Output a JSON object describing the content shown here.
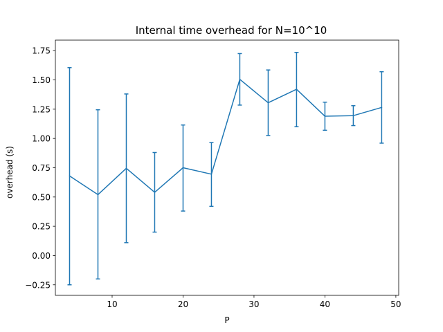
{
  "chart_data": {
    "type": "line",
    "title": "Internal time overhead for N=10^10",
    "xlabel": "P",
    "ylabel": "overhead (s)",
    "xlim": [
      2,
      50.4
    ],
    "ylim": [
      -0.34,
      1.84
    ],
    "xticks": [
      10,
      20,
      30,
      40,
      50
    ],
    "yticks": [
      -0.25,
      0.0,
      0.25,
      0.5,
      0.75,
      1.0,
      1.25,
      1.5,
      1.75
    ],
    "xtick_labels": [
      "10",
      "20",
      "30",
      "40",
      "50"
    ],
    "ytick_labels": [
      "−0.25",
      "0.00",
      "0.25",
      "0.50",
      "0.75",
      "1.00",
      "1.25",
      "1.50",
      "1.75"
    ],
    "grid": false,
    "color": "#1f77b4",
    "series": [
      {
        "x": [
          4,
          8,
          12,
          16,
          20,
          24,
          28,
          32,
          36,
          40,
          44,
          48
        ],
        "y": [
          0.68,
          0.52,
          0.745,
          0.54,
          0.75,
          0.695,
          1.505,
          1.305,
          1.42,
          1.19,
          1.195,
          1.265
        ],
        "error_low": [
          -0.25,
          -0.2,
          0.11,
          0.2,
          0.38,
          0.42,
          1.285,
          1.025,
          1.1,
          1.07,
          1.11,
          0.96
        ],
        "error_high": [
          1.605,
          1.245,
          1.38,
          0.88,
          1.115,
          0.965,
          1.725,
          1.585,
          1.735,
          1.31,
          1.28,
          1.57
        ]
      }
    ]
  }
}
